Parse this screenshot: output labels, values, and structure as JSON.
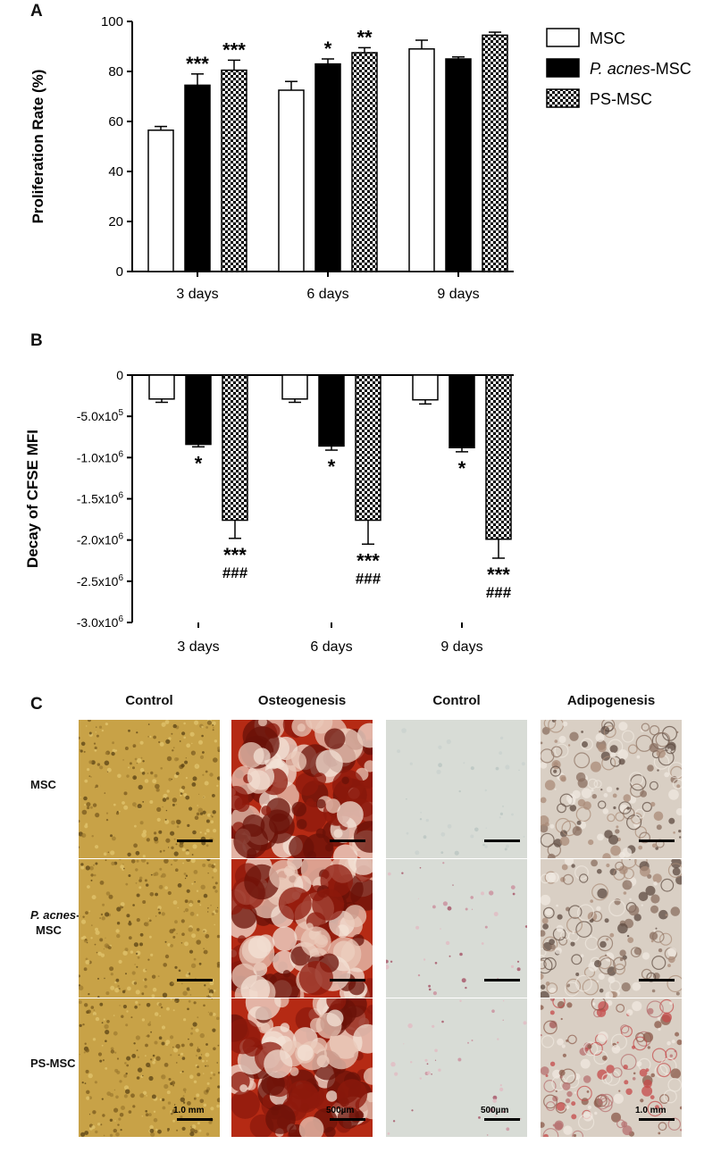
{
  "panel_a": {
    "letter": "A",
    "chart_data": {
      "type": "bar",
      "ylabel": "Proliferation Rate (%)",
      "ylim": [
        0,
        100
      ],
      "yticks": [
        0,
        20,
        40,
        60,
        80,
        100
      ],
      "categories": [
        "3 days",
        "6 days",
        "9 days"
      ],
      "series": [
        {
          "name": "MSC",
          "values": [
            56.5,
            72.5,
            89
          ],
          "errors": [
            1.5,
            3.5,
            3.5
          ]
        },
        {
          "name": "P. acnes-MSC",
          "values": [
            74.5,
            83,
            85
          ],
          "errors": [
            4.5,
            2,
            0.8
          ]
        },
        {
          "name": "PS-MSC",
          "values": [
            80.5,
            87.5,
            94.5
          ],
          "errors": [
            4,
            2,
            1.2
          ]
        }
      ],
      "annotations": [
        {
          "category": "3 days",
          "series": "P. acnes-MSC",
          "text": "***"
        },
        {
          "category": "3 days",
          "series": "PS-MSC",
          "text": "***"
        },
        {
          "category": "6 days",
          "series": "P. acnes-MSC",
          "text": "*"
        },
        {
          "category": "6 days",
          "series": "PS-MSC",
          "text": "**"
        }
      ],
      "legend": {
        "placement": "right",
        "items": [
          {
            "prefix": "",
            "italic": "",
            "suffix": "MSC",
            "fill": "white"
          },
          {
            "prefix": "",
            "italic": "P. acnes",
            "suffix": "-MSC",
            "fill": "black"
          },
          {
            "prefix": "",
            "italic": "",
            "suffix": "PS-MSC",
            "fill": "checker"
          }
        ]
      }
    }
  },
  "panel_b": {
    "letter": "B",
    "chart_data": {
      "type": "bar",
      "ylabel": "Decay of CFSE MFI",
      "ylim": [
        -3000000,
        0
      ],
      "ytick_labels": [
        {
          "value": 0,
          "base": "0",
          "exp": ""
        },
        {
          "value": -500000,
          "base": "-5.0x10",
          "exp": "5"
        },
        {
          "value": -1000000,
          "base": "-1.0x10",
          "exp": "6"
        },
        {
          "value": -1500000,
          "base": "-1.5x10",
          "exp": "6"
        },
        {
          "value": -2000000,
          "base": "-2.0x10",
          "exp": "6"
        },
        {
          "value": -2500000,
          "base": "-2.5x10",
          "exp": "6"
        },
        {
          "value": -3000000,
          "base": "-3.0x10",
          "exp": "6"
        }
      ],
      "categories": [
        "3 days",
        "6 days",
        "9 days"
      ],
      "series": [
        {
          "name": "MSC",
          "values": [
            -290000,
            -290000,
            -300000
          ],
          "errors": [
            40000,
            40000,
            50000
          ]
        },
        {
          "name": "P. acnes-MSC",
          "values": [
            -840000,
            -860000,
            -880000
          ],
          "errors": [
            30000,
            50000,
            50000
          ]
        },
        {
          "name": "PS-MSC",
          "values": [
            -1760000,
            -1760000,
            -1990000
          ],
          "errors": [
            220000,
            290000,
            230000
          ]
        }
      ],
      "annotations": [
        {
          "category": "3 days",
          "series": "P. acnes-MSC",
          "lines": [
            "*"
          ]
        },
        {
          "category": "3 days",
          "series": "PS-MSC",
          "lines": [
            "***",
            "###"
          ]
        },
        {
          "category": "6 days",
          "series": "P. acnes-MSC",
          "lines": [
            "*"
          ]
        },
        {
          "category": "6 days",
          "series": "PS-MSC",
          "lines": [
            "***",
            "###"
          ]
        },
        {
          "category": "9 days",
          "series": "P. acnes-MSC",
          "lines": [
            "*"
          ]
        },
        {
          "category": "9 days",
          "series": "PS-MSC",
          "lines": [
            "***",
            "###"
          ]
        }
      ]
    }
  },
  "panel_c": {
    "letter": "C",
    "columns": [
      "Control",
      "Osteogenesis",
      "Control",
      "Adipogenesis"
    ],
    "rows": [
      {
        "line1": "MSC",
        "line1_italic": false,
        "line2": ""
      },
      {
        "line1": "P. acnes-",
        "line1_italic": true,
        "line2": "MSC"
      },
      {
        "line1": "PS-MSC",
        "line1_italic": false,
        "line2": ""
      }
    ],
    "scale_labels": [
      "1.0 mm",
      "500µm",
      "500µm",
      "1.0 mm"
    ],
    "tile_colors": {
      "control_alizarin": "#c8a247",
      "osteogenesis": "#b52a14",
      "control_oil": "#d8dcd6",
      "adipogenesis": "#d9cfc4"
    }
  }
}
